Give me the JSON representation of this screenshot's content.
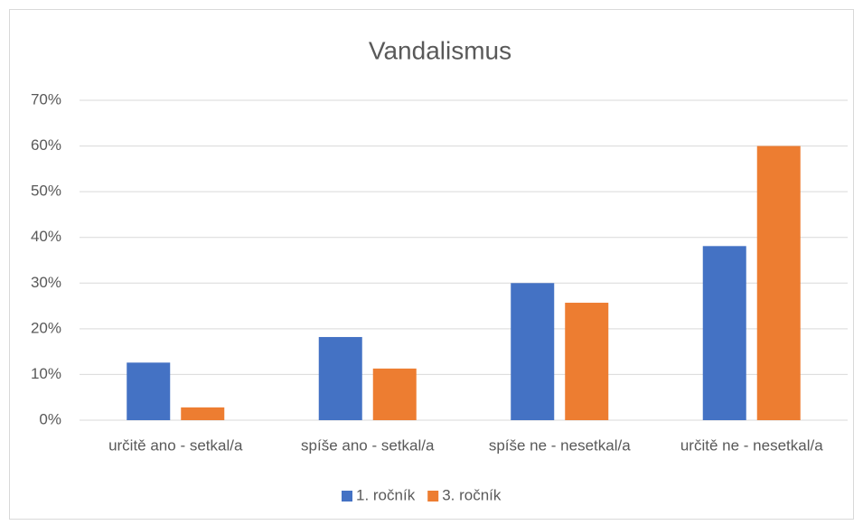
{
  "chart_data": {
    "type": "bar",
    "title": "Vandalismus",
    "categories": [
      "určitě ano - setkal/a",
      "spíše ano - setkal/a",
      "spíše ne - nesetkal/a",
      "určitě ne - nesetkal/a"
    ],
    "series": [
      {
        "name": "1. ročník",
        "color": "#4472c4",
        "values": [
          12.6,
          18.2,
          30.0,
          38.1
        ]
      },
      {
        "name": "3. ročník",
        "color": "#ed7d31",
        "values": [
          2.8,
          11.3,
          25.7,
          60.0
        ]
      }
    ],
    "ylim": [
      0,
      70
    ],
    "yticks": [
      {
        "value": 0,
        "label": "0%"
      },
      {
        "value": 10,
        "label": "10%"
      },
      {
        "value": 20,
        "label": "20%"
      },
      {
        "value": 30,
        "label": "30%"
      },
      {
        "value": 40,
        "label": "40%"
      },
      {
        "value": 50,
        "label": "50%"
      },
      {
        "value": 60,
        "label": "60%"
      },
      {
        "value": 70,
        "label": "70%"
      }
    ],
    "grid": true,
    "legend": "bottom"
  }
}
